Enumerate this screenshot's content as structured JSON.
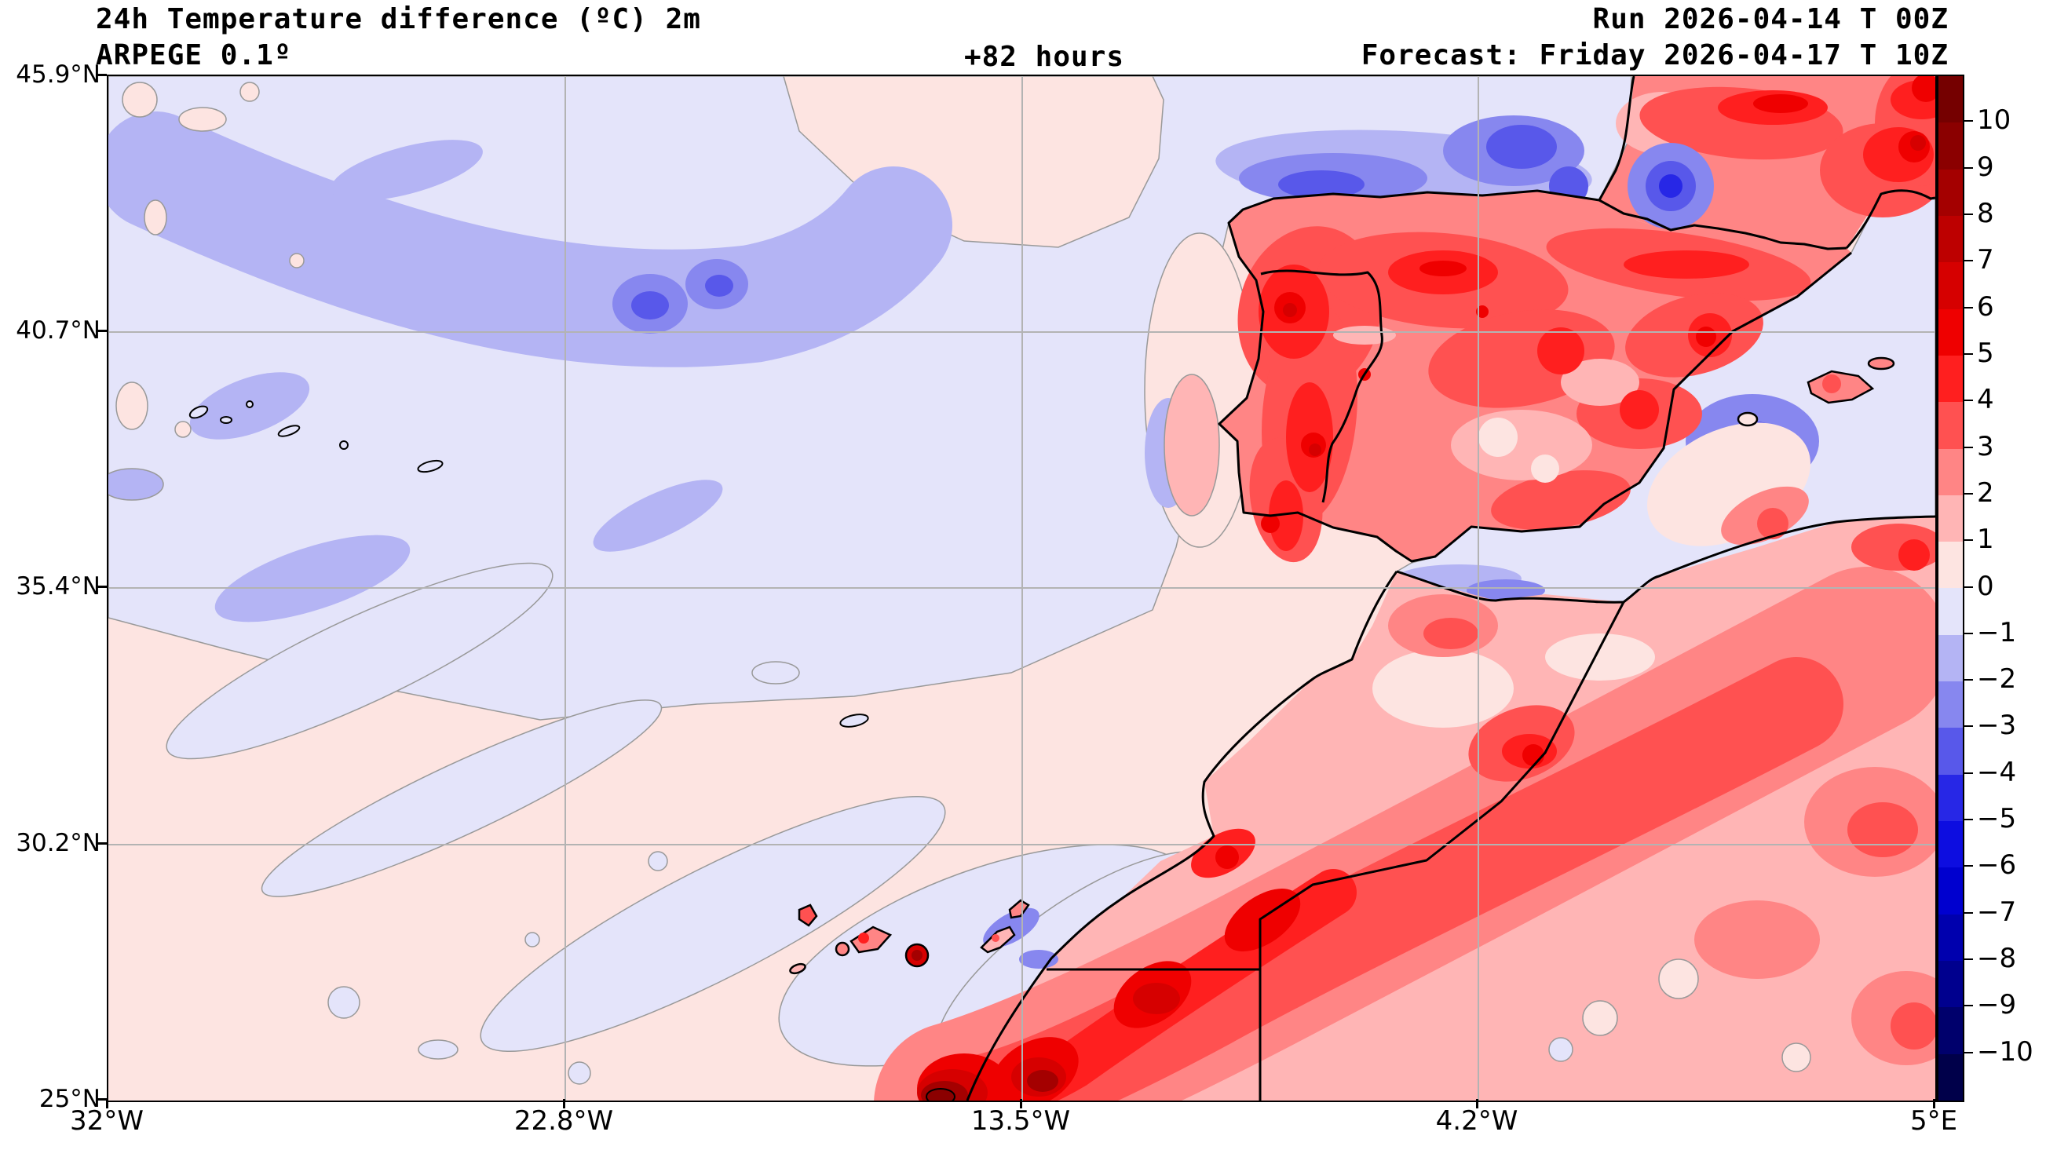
{
  "header": {
    "title": "24h Temperature difference (ºC) 2m",
    "model": "ARPEGE 0.1º",
    "lead_time": "+82 hours",
    "run": "Run 2026-04-14 T 00Z",
    "forecast": "Forecast: Friday 2026-04-17 T 10Z"
  },
  "map": {
    "x_ticks": [
      "32°W",
      "22.8°W",
      "13.5°W",
      "4.2°W",
      "5°E"
    ],
    "y_ticks": [
      "45.9°N",
      "40.7°N",
      "35.4°N",
      "30.2°N",
      "25°N"
    ]
  },
  "colorbar": {
    "tick_labels": [
      "10",
      "9",
      "8",
      "7",
      "6",
      "5",
      "4",
      "3",
      "2",
      "1",
      "0",
      "−1",
      "−2",
      "−3",
      "−4",
      "−5",
      "−6",
      "−7",
      "−8",
      "−9",
      "−10"
    ],
    "segment_colors_top_to_bottom": [
      "#750000",
      "#8b0000",
      "#a40000",
      "#bd0000",
      "#d60000",
      "#ef0000",
      "#ff1f1f",
      "#ff5151",
      "#ff8585",
      "#ffb5b5",
      "#fde4e1",
      "#e4e4fa",
      "#b4b4f4",
      "#8787ef",
      "#5858ea",
      "#2727e6",
      "#0d0de0",
      "#0000cf",
      "#0000ae",
      "#00008e",
      "#00006c",
      "#00004a"
    ]
  },
  "chart_data": {
    "type": "heatmap",
    "title": "24h Temperature difference (ºC) 2m",
    "model": "ARPEGE 0.1º",
    "lead_hours": 82,
    "x_axis_ticks_lon": [
      "32°W",
      "22.8°W",
      "13.5°W",
      "4.2°W",
      "5°E"
    ],
    "y_axis_ticks_lat": [
      "45.9°N",
      "40.7°N",
      "35.4°N",
      "30.2°N",
      "25°N"
    ],
    "colorbar_levels": [
      -10,
      -9,
      -8,
      -7,
      -6,
      -5,
      -4,
      -3,
      -2,
      -1,
      0,
      1,
      2,
      3,
      4,
      5,
      6,
      7,
      8,
      9,
      10
    ],
    "legend_position": "right",
    "grid": true
  }
}
